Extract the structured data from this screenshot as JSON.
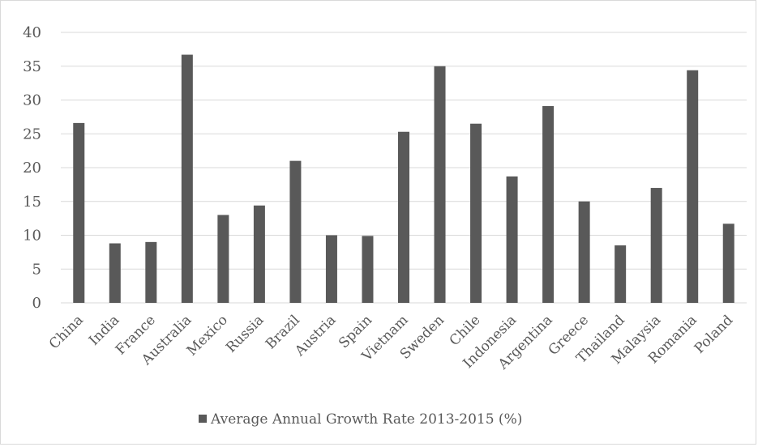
{
  "chart_data": {
    "type": "bar",
    "categories": [
      "China",
      "India",
      "France",
      "Australia",
      "Mexico",
      "Russia",
      "Brazil",
      "Austria",
      "Spain",
      "Vietnam",
      "Sweden",
      "Chile",
      "Indonesia",
      "Argentina",
      "Greece",
      "Thailand",
      "Malaysia",
      "Romania",
      "Poland"
    ],
    "series": [
      {
        "name": "Average Annual Growth Rate 2013-2015 (%)",
        "values": [
          26.6,
          8.8,
          9.0,
          36.7,
          13.0,
          14.4,
          21.0,
          10.0,
          9.9,
          25.3,
          35.0,
          26.5,
          18.7,
          29.1,
          15.0,
          8.5,
          17.0,
          34.4,
          11.7
        ],
        "color": "#595959"
      }
    ],
    "y_ticks": [
      "0",
      "5",
      "10",
      "15",
      "20",
      "25",
      "30",
      "35",
      "40"
    ],
    "ylim": [
      0,
      40
    ],
    "grid": true,
    "legend_position": "bottom",
    "gridline_color": "#d9d9d9",
    "text_color": "#595959"
  }
}
